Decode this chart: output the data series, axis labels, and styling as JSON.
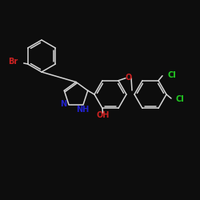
{
  "background_color": "#0d0d0d",
  "bond_color": "#d8d8d8",
  "label_colors": {
    "Br": "#cc2222",
    "Cl": "#22cc22",
    "O": "#cc2222",
    "OH": "#cc2222",
    "N": "#2222cc",
    "NH": "#2222cc"
  },
  "figsize": [
    2.5,
    2.5
  ],
  "dpi": 100
}
